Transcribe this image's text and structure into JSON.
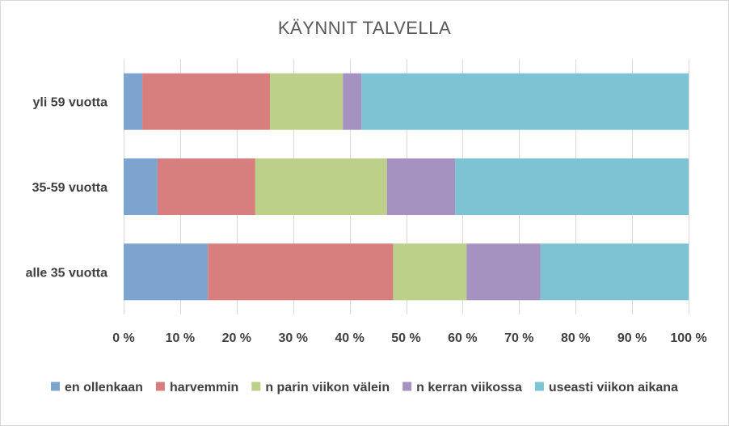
{
  "chart_data": {
    "type": "bar",
    "orientation": "horizontal",
    "stacked": "percent",
    "title": "KÄYNNIT TALVELLA",
    "categories": [
      "yli 59 vuotta",
      "35-59 vuotta",
      "alle 35 vuotta"
    ],
    "x_ticks": [
      "0 %",
      "10 %",
      "20 %",
      "30 %",
      "40 %",
      "50 %",
      "60 %",
      "70 %",
      "80 %",
      "90 %",
      "100 %"
    ],
    "xlim": [
      0,
      100
    ],
    "grid": true,
    "legend_position": "bottom",
    "series": [
      {
        "name": "en ollenkaan",
        "color": "#7da3cf",
        "values": [
          3.3,
          6.0,
          14.9
        ]
      },
      {
        "name": "harvemmin",
        "color": "#d77f7f",
        "values": [
          22.6,
          17.3,
          32.8
        ]
      },
      {
        "name": "n parin viikon välein",
        "color": "#bcd08a",
        "values": [
          12.9,
          23.3,
          13.0
        ]
      },
      {
        "name": "n kerran viikossa",
        "color": "#a692c1",
        "values": [
          3.3,
          12.1,
          13.1
        ]
      },
      {
        "name": "useasti viikon aikana",
        "color": "#7ec3d3",
        "values": [
          57.9,
          41.3,
          26.2
        ]
      }
    ]
  }
}
